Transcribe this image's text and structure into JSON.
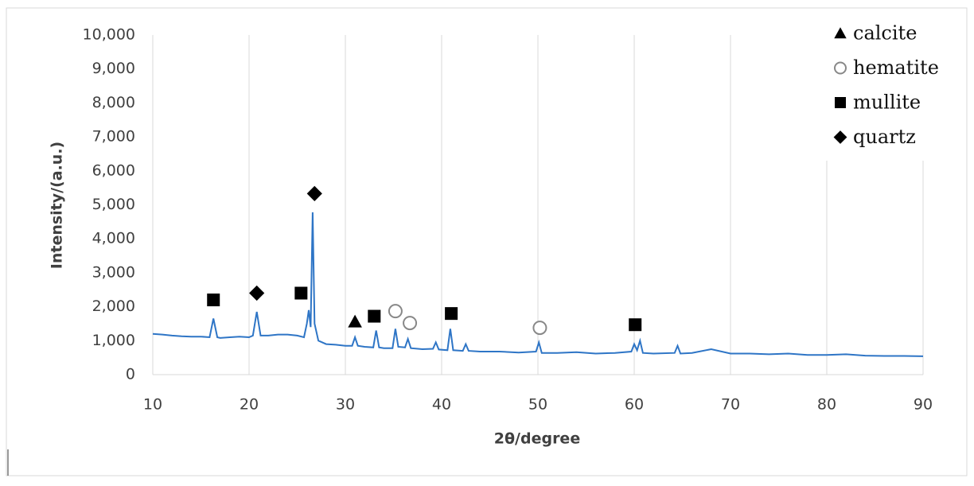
{
  "chart_data": {
    "type": "line",
    "xlabel": "2θ/degree",
    "ylabel": "Intensity/(a.u.)",
    "xlim": [
      10,
      90
    ],
    "ylim": [
      0,
      10000
    ],
    "xticks": [
      10,
      20,
      30,
      40,
      50,
      60,
      70,
      80,
      90
    ],
    "yticks": [
      0,
      {
        "value": 1000,
        "label": "1,000"
      },
      {
        "value": 2000,
        "label": "2,000"
      },
      {
        "value": 3000,
        "label": "3,000"
      },
      {
        "value": 4000,
        "label": "4,000"
      },
      {
        "value": 5000,
        "label": "5,000"
      },
      {
        "value": 6000,
        "label": "6,000"
      },
      {
        "value": 7000,
        "label": "7,000"
      },
      {
        "value": 8000,
        "label": "8,000"
      },
      {
        "value": 9000,
        "label": "9,000"
      },
      {
        "value": 10000,
        "label": "10,000"
      }
    ],
    "grid": "x",
    "color": "#2e75c6",
    "legend": "top-right",
    "x": [
      10,
      11,
      12,
      13,
      14,
      15,
      15.9,
      16.3,
      16.7,
      17,
      18,
      19,
      20,
      20.4,
      20.8,
      21.2,
      22,
      23,
      24,
      25,
      25.7,
      26,
      26.2,
      26.4,
      26.6,
      26.8,
      27.2,
      28,
      29,
      30,
      30.7,
      31,
      31.3,
      32,
      32.9,
      33.2,
      33.5,
      34,
      34.9,
      35.2,
      35.5,
      36.2,
      36.5,
      36.8,
      38,
      39.1,
      39.4,
      39.7,
      40.6,
      40.9,
      41.2,
      42.2,
      42.5,
      42.8,
      44,
      46,
      48,
      49.8,
      50.1,
      50.4,
      52,
      54,
      56,
      58,
      59.7,
      60,
      60.3,
      60.6,
      60.9,
      62,
      64.2,
      64.5,
      64.8,
      66,
      68,
      70,
      72,
      74,
      76,
      78,
      80,
      82,
      84,
      86,
      88,
      90
    ],
    "values": [
      1200,
      1180,
      1150,
      1130,
      1120,
      1120,
      1100,
      1650,
      1100,
      1080,
      1100,
      1120,
      1100,
      1150,
      1850,
      1150,
      1150,
      1180,
      1180,
      1150,
      1100,
      1500,
      1900,
      1400,
      4780,
      1500,
      1000,
      900,
      880,
      850,
      850,
      1100,
      850,
      820,
      800,
      1300,
      800,
      780,
      780,
      1350,
      820,
      800,
      1050,
      780,
      750,
      760,
      950,
      740,
      720,
      1350,
      720,
      700,
      900,
      700,
      680,
      680,
      650,
      680,
      950,
      640,
      640,
      660,
      620,
      640,
      680,
      900,
      720,
      1000,
      640,
      620,
      640,
      850,
      620,
      640,
      750,
      620,
      620,
      600,
      620,
      580,
      580,
      600,
      560,
      550,
      550,
      540
    ],
    "phases": [
      {
        "name": "calcite",
        "symbol": "triangle",
        "x": [
          31
        ],
        "y": [
          1560
        ]
      },
      {
        "name": "hematite",
        "symbol": "circle",
        "x": [
          35.2,
          36.7,
          50.2
        ],
        "y": [
          1870,
          1520,
          1380
        ]
      },
      {
        "name": "mullite",
        "symbol": "square",
        "x": [
          16.3,
          25.4,
          33,
          41,
          60.1
        ],
        "y": [
          2200,
          2400,
          1720,
          1800,
          1470
        ]
      },
      {
        "name": "quartz",
        "symbol": "diamond",
        "x": [
          20.8,
          26.8
        ],
        "y": [
          2400,
          5330
        ]
      }
    ]
  }
}
